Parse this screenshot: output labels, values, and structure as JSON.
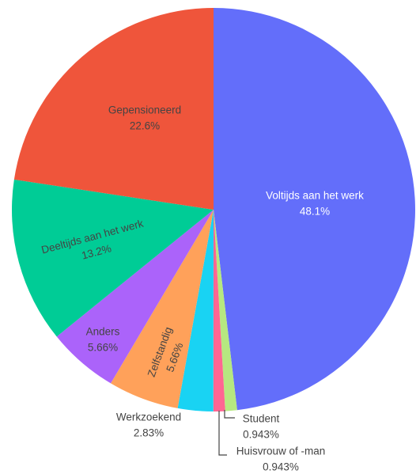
{
  "chart_data": {
    "type": "pie",
    "categories": [
      "Voltijds aan het werk",
      "Student",
      "Huisvrouw of -man",
      "Werkzoekend",
      "Zelfstandig",
      "Anders",
      "Deeltijds aan het werk",
      "Gepensioneerd"
    ],
    "values": [
      48.1,
      0.943,
      0.943,
      2.83,
      5.66,
      5.66,
      13.2,
      22.6
    ],
    "value_labels": [
      "48.1%",
      "0.943%",
      "0.943%",
      "2.83%",
      "5.66%",
      "5.66%",
      "13.2%",
      "22.6%"
    ],
    "colors": [
      "#636efa",
      "#b6e880",
      "#ff6692",
      "#19d3f3",
      "#ffa15a",
      "#ab63fa",
      "#00cc96",
      "#ef553b"
    ]
  }
}
